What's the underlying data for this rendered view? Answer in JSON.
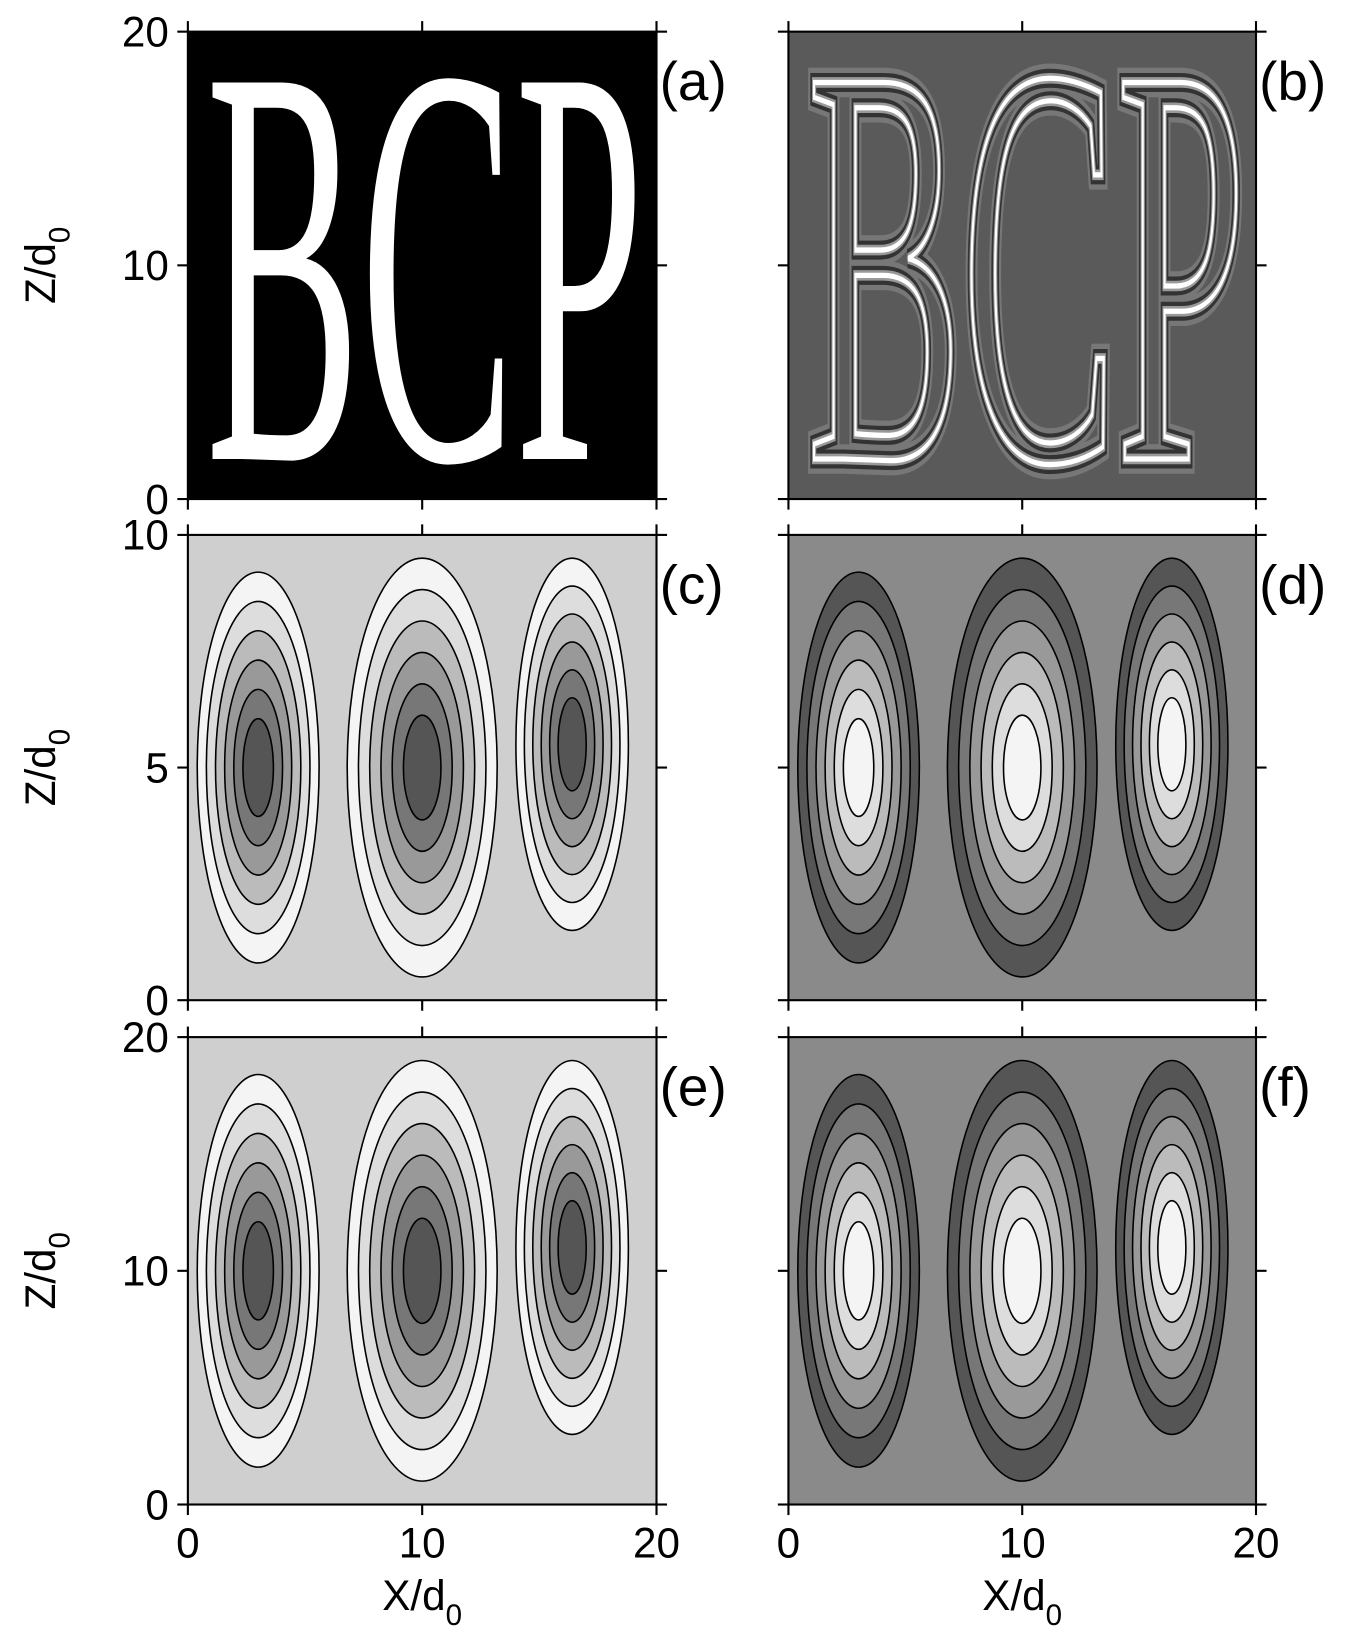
{
  "figure": {
    "pattern": "BCP",
    "columns": [
      {
        "xlim": [
          0,
          20
        ],
        "xticks": [
          0,
          10,
          20
        ],
        "xlabel": {
          "text": "X/d",
          "subscript": "0"
        }
      },
      {
        "xlim": [
          0,
          20
        ],
        "xticks": [
          0,
          10,
          20
        ],
        "xlabel": {
          "text": "X/d",
          "subscript": "0"
        }
      }
    ],
    "rows": [
      {
        "ylim": [
          0,
          20
        ],
        "yticks": [
          0,
          10,
          20
        ],
        "ylabel": {
          "text": "Z/d",
          "subscript": "0"
        }
      },
      {
        "ylim": [
          0,
          10
        ],
        "yticks": [
          0,
          5,
          10
        ],
        "ylabel": {
          "text": "Z/d",
          "subscript": "0"
        }
      },
      {
        "ylim": [
          0,
          20
        ],
        "yticks": [
          0,
          10,
          20
        ],
        "ylabel": {
          "text": "Z/d",
          "subscript": "0"
        }
      }
    ],
    "panels": [
      {
        "label": "(a)"
      },
      {
        "label": "(b)"
      },
      {
        "label": "(c)"
      },
      {
        "label": "(d)"
      },
      {
        "label": "(e)"
      },
      {
        "label": "(f)"
      }
    ]
  }
}
